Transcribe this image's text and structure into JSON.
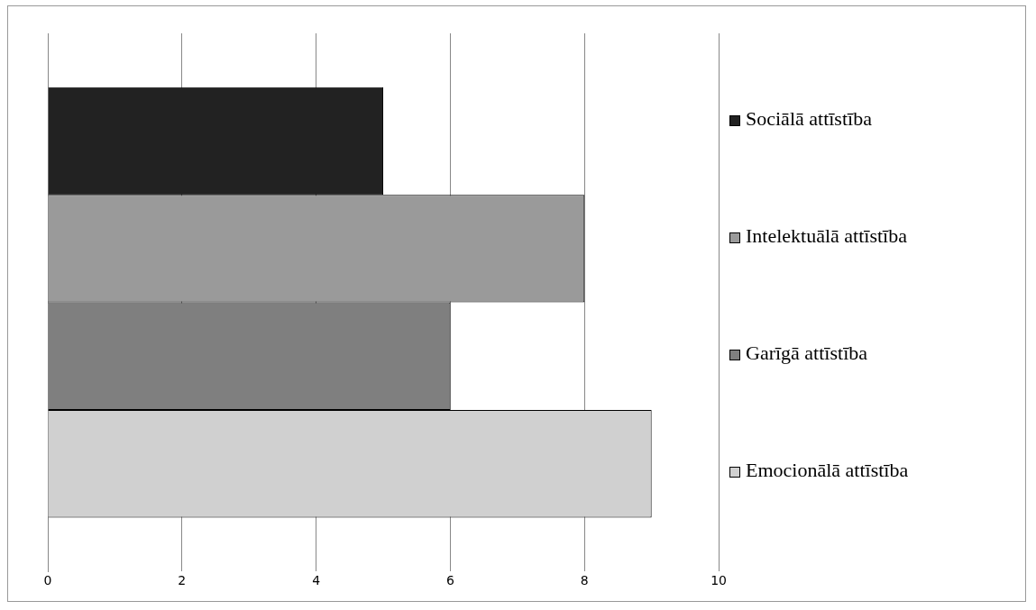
{
  "chart_data": {
    "type": "bar",
    "orientation": "horizontal",
    "categories": [
      null
    ],
    "series": [
      {
        "name": "Sociālā attīstība",
        "color": "#222222",
        "values": [
          5
        ]
      },
      {
        "name": "Intelektuālā attīstība",
        "color": "#9a9a9a",
        "values": [
          8
        ]
      },
      {
        "name": "Garīgā attīstība",
        "color": "#7f7f7f",
        "values": [
          6
        ]
      },
      {
        "name": "Emocionālā attīstība",
        "color": "#d0d0d0",
        "values": [
          9
        ]
      }
    ],
    "xlim": [
      0,
      10
    ],
    "xticks": [
      0,
      2,
      4,
      6,
      8,
      10
    ],
    "grid": "x",
    "legend": "right"
  }
}
